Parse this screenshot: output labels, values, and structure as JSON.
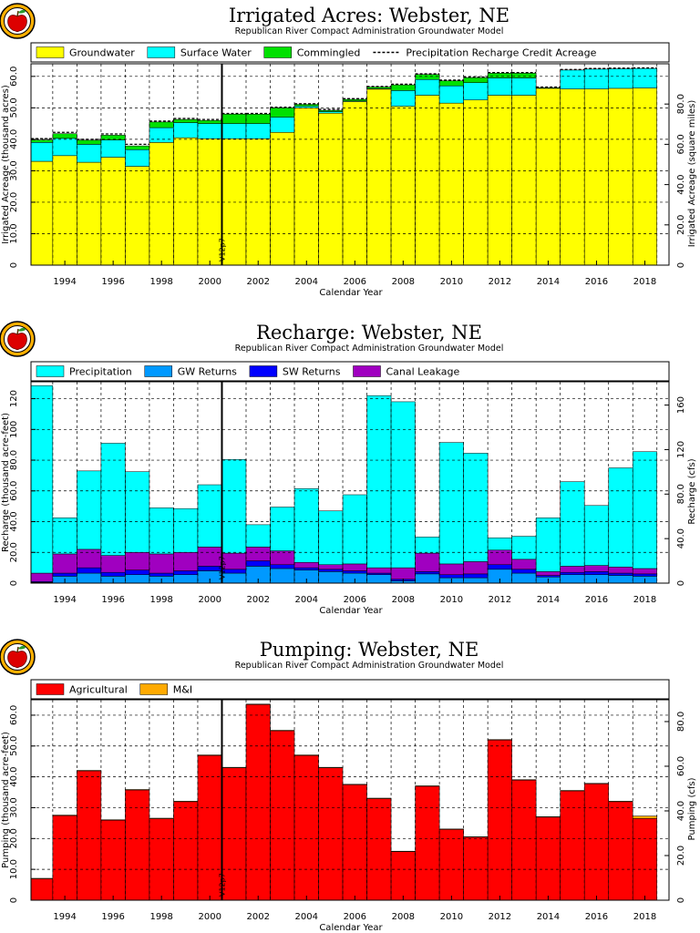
{
  "colors": {
    "groundwater": "#ffff00",
    "surface_water": "#00ffff",
    "commingled": "#00e000",
    "gw_returns": "#0099ff",
    "sw_returns": "#0000ff",
    "canal_leakage": "#a000c0",
    "agricultural": "#ff0000",
    "mi": "#ffaa00",
    "logo_apple": "#dd0000",
    "logo_ring": "#ffb000"
  },
  "logo_icon": "apple-seal-icon",
  "chart_data": [
    {
      "type": "bar",
      "stacked": true,
      "title": "Irrigated Acres: Webster, NE",
      "subtitle": "Republican River Compact Administration Groundwater Model",
      "xlabel": "Calendar Year",
      "ylabel": "Irrigated Acreage (thousand acres)",
      "y2label": "Irrigated Acreage (square miles)",
      "xlim": [
        1992.6,
        2019
      ],
      "ylim": [
        0,
        64
      ],
      "yticks": [
        0,
        10.0,
        20.0,
        30.0,
        40.0,
        50.0,
        60.0
      ],
      "ytick_labels": [
        "0",
        "10.0",
        "20.0",
        "30.0",
        "40.0",
        "50.0",
        "60.0"
      ],
      "y2ticks_in_y": [
        0,
        12.8,
        25.6,
        38.4,
        51.2
      ],
      "y2tick_labels": [
        "0",
        "20.0",
        "40.0",
        "60.0",
        "80.0"
      ],
      "xticks": [
        1994,
        1996,
        1998,
        2000,
        2002,
        2004,
        2006,
        2008,
        2010,
        2012,
        2014,
        2016,
        2018
      ],
      "xtick_labels": [
        "1994",
        "1996",
        "1998",
        "2000",
        "2002",
        "2004",
        "2006",
        "2008",
        "2010",
        "2012",
        "2014",
        "2016",
        "2018"
      ],
      "marker_year": 2000.5,
      "marker_label": "V12p7",
      "legend": [
        "Groundwater",
        "Surface Water",
        "Commingled",
        "Precipitation Recharge Credit Acreage"
      ],
      "years": [
        1993,
        1994,
        1995,
        1996,
        1997,
        1998,
        1999,
        2000,
        2001,
        2002,
        2003,
        2004,
        2005,
        2006,
        2007,
        2008,
        2009,
        2010,
        2011,
        2012,
        2013,
        2014,
        2015,
        2016,
        2017,
        2018
      ],
      "series": [
        {
          "name": "Groundwater",
          "values": [
            33.0,
            34.8,
            32.7,
            34.3,
            31.4,
            39.0,
            40.5,
            40.2,
            40.2,
            40.2,
            42.2,
            50.0,
            48.3,
            52.0,
            56.0,
            50.5,
            54.0,
            51.5,
            52.5,
            54.0,
            54.0,
            56.2,
            56.0,
            56.0,
            56.2,
            56.3
          ]
        },
        {
          "name": "Surface Water",
          "values": [
            6.0,
            5.5,
            5.7,
            5.5,
            5.3,
            4.7,
            4.8,
            4.8,
            4.8,
            4.8,
            4.8,
            0.5,
            0.5,
            0.2,
            0.1,
            5.0,
            5.0,
            5.5,
            5.5,
            5.5,
            5.5,
            0.0,
            6.0,
            6.3,
            6.2,
            6.2
          ]
        },
        {
          "name": "Commingled",
          "values": [
            0.8,
            1.5,
            1.3,
            1.5,
            1.2,
            1.8,
            1.0,
            1.0,
            3.0,
            3.0,
            3.0,
            0.6,
            0.4,
            0.5,
            0.5,
            1.8,
            1.6,
            1.6,
            1.6,
            1.5,
            1.5,
            0.2,
            0.0,
            0.0,
            0.0,
            0.0
          ]
        }
      ],
      "precip_credit": [
        40.2,
        42.2,
        40.0,
        41.7,
        38.4,
        45.8,
        46.6,
        46.3,
        48.2,
        48.2,
        50.2,
        51.3,
        49.5,
        52.9,
        56.8,
        57.5,
        60.8,
        58.8,
        59.8,
        61.2,
        61.2,
        56.6,
        62.2,
        62.5,
        62.6,
        62.7
      ]
    },
    {
      "type": "bar",
      "stacked": true,
      "title": "Recharge: Webster, NE",
      "subtitle": "Republican River Compact Administration Groundwater Model",
      "xlabel": "Calendar Year",
      "ylabel": "Recharge (thousand acre-feet)",
      "y2label": "Recharge (cfs)",
      "xlim": [
        1992.6,
        2019
      ],
      "ylim": [
        0,
        131
      ],
      "yticks": [
        0,
        20.0,
        40.0,
        60.0,
        80.0,
        100,
        120
      ],
      "ytick_labels": [
        "0",
        "20.0",
        "40.0",
        "60.0",
        "80.0",
        "100",
        "120"
      ],
      "y2ticks_in_y": [
        0,
        28.96,
        57.92,
        86.88,
        115.84
      ],
      "y2tick_labels": [
        "0",
        "40.0",
        "80.0",
        "120",
        "160"
      ],
      "xticks": [
        1994,
        1996,
        1998,
        2000,
        2002,
        2004,
        2006,
        2008,
        2010,
        2012,
        2014,
        2016,
        2018
      ],
      "xtick_labels": [
        "1994",
        "1996",
        "1998",
        "2000",
        "2002",
        "2004",
        "2006",
        "2008",
        "2010",
        "2012",
        "2014",
        "2016",
        "2018"
      ],
      "marker_year": 2000.5,
      "marker_label": "V12p7",
      "legend": [
        "Precipitation",
        "GW Returns",
        "SW Returns",
        "Canal Leakage"
      ],
      "years": [
        1993,
        1994,
        1995,
        1996,
        1997,
        1998,
        1999,
        2000,
        2001,
        2002,
        2003,
        2004,
        2005,
        2006,
        2007,
        2008,
        2009,
        2010,
        2011,
        2012,
        2013,
        2014,
        2015,
        2016,
        2017,
        2018
      ],
      "series": [
        {
          "name": "GW Returns",
          "values": [
            0.5,
            4.5,
            6.5,
            4.5,
            5.5,
            4.5,
            5.5,
            8.0,
            6.5,
            11.0,
            9.5,
            8.5,
            7.5,
            6.5,
            5.5,
            1.5,
            6.0,
            3.5,
            3.5,
            9.0,
            6.5,
            4.0,
            5.5,
            5.5,
            5.0,
            4.5
          ]
        },
        {
          "name": "SW Returns",
          "values": [
            0.5,
            2.0,
            3.5,
            2.5,
            3.0,
            2.0,
            2.5,
            3.0,
            2.5,
            3.5,
            2.5,
            1.5,
            1.5,
            1.5,
            1.0,
            1.0,
            1.5,
            2.0,
            2.5,
            3.0,
            2.5,
            1.0,
            1.5,
            2.0,
            1.5,
            1.5
          ]
        },
        {
          "name": "Canal Leakage",
          "values": [
            5.5,
            12.5,
            12.0,
            11.0,
            11.5,
            12.5,
            12.0,
            12.5,
            10.5,
            9.0,
            9.0,
            3.5,
            3.0,
            4.5,
            3.5,
            7.5,
            12.0,
            7.0,
            8.0,
            9.5,
            6.5,
            2.5,
            4.0,
            4.0,
            4.0,
            3.5
          ]
        },
        {
          "name": "Precipitation",
          "values": [
            122.0,
            23.5,
            51.0,
            73.0,
            52.5,
            30.0,
            28.5,
            40.5,
            61.0,
            14.5,
            28.5,
            48.0,
            35.0,
            45.0,
            112.0,
            108.0,
            10.5,
            79.0,
            70.5,
            8.0,
            15.0,
            35.0,
            55.0,
            39.0,
            64.5,
            76.0
          ]
        }
      ]
    },
    {
      "type": "bar",
      "stacked": true,
      "title": "Pumping: Webster, NE",
      "subtitle": "Republican River Compact Administration Groundwater Model",
      "xlabel": "Calendar Year",
      "ylabel": "Pumping (thousand acre-feet)",
      "y2label": "Pumping (cfs)",
      "xlim": [
        1992.6,
        2019
      ],
      "ylim": [
        0,
        65
      ],
      "yticks": [
        0,
        10.0,
        20.0,
        30.0,
        40.0,
        50.0,
        60.0
      ],
      "ytick_labels": [
        "0",
        "10.0",
        "20.0",
        "30.0",
        "40.0",
        "50.0",
        "60.0"
      ],
      "y2ticks_in_y": [
        0,
        14.48,
        28.96,
        43.44,
        57.92
      ],
      "y2tick_labels": [
        "0",
        "20.0",
        "40.0",
        "60.0",
        "80.0"
      ],
      "xticks": [
        1994,
        1996,
        1998,
        2000,
        2002,
        2004,
        2006,
        2008,
        2010,
        2012,
        2014,
        2016,
        2018
      ],
      "xtick_labels": [
        "1994",
        "1996",
        "1998",
        "2000",
        "2002",
        "2004",
        "2006",
        "2008",
        "2010",
        "2012",
        "2014",
        "2016",
        "2018"
      ],
      "marker_year": 2000.5,
      "marker_label": "V12p7",
      "legend": [
        "Agricultural",
        "M&I"
      ],
      "years": [
        1993,
        1994,
        1995,
        1996,
        1997,
        1998,
        1999,
        2000,
        2001,
        2002,
        2003,
        2004,
        2005,
        2006,
        2007,
        2008,
        2009,
        2010,
        2011,
        2012,
        2013,
        2014,
        2015,
        2016,
        2017,
        2018
      ],
      "series": [
        {
          "name": "Agricultural",
          "values": [
            7.0,
            27.5,
            42.0,
            26.0,
            35.8,
            26.5,
            32.0,
            47.0,
            43.0,
            63.5,
            55.0,
            47.0,
            43.0,
            37.5,
            33.0,
            15.8,
            37.0,
            23.0,
            20.5,
            52.0,
            39.0,
            27.0,
            35.5,
            37.8,
            32.0,
            26.5
          ]
        },
        {
          "name": "M&I",
          "values": [
            0.1,
            0.1,
            0.1,
            0.1,
            0.1,
            0.1,
            0.1,
            0.1,
            0.1,
            0.1,
            0.1,
            0.1,
            0.1,
            0.1,
            0.1,
            0.1,
            0.1,
            0.1,
            0.1,
            0.1,
            0.1,
            0.1,
            0.1,
            0.1,
            0.1,
            0.8
          ]
        }
      ]
    }
  ]
}
